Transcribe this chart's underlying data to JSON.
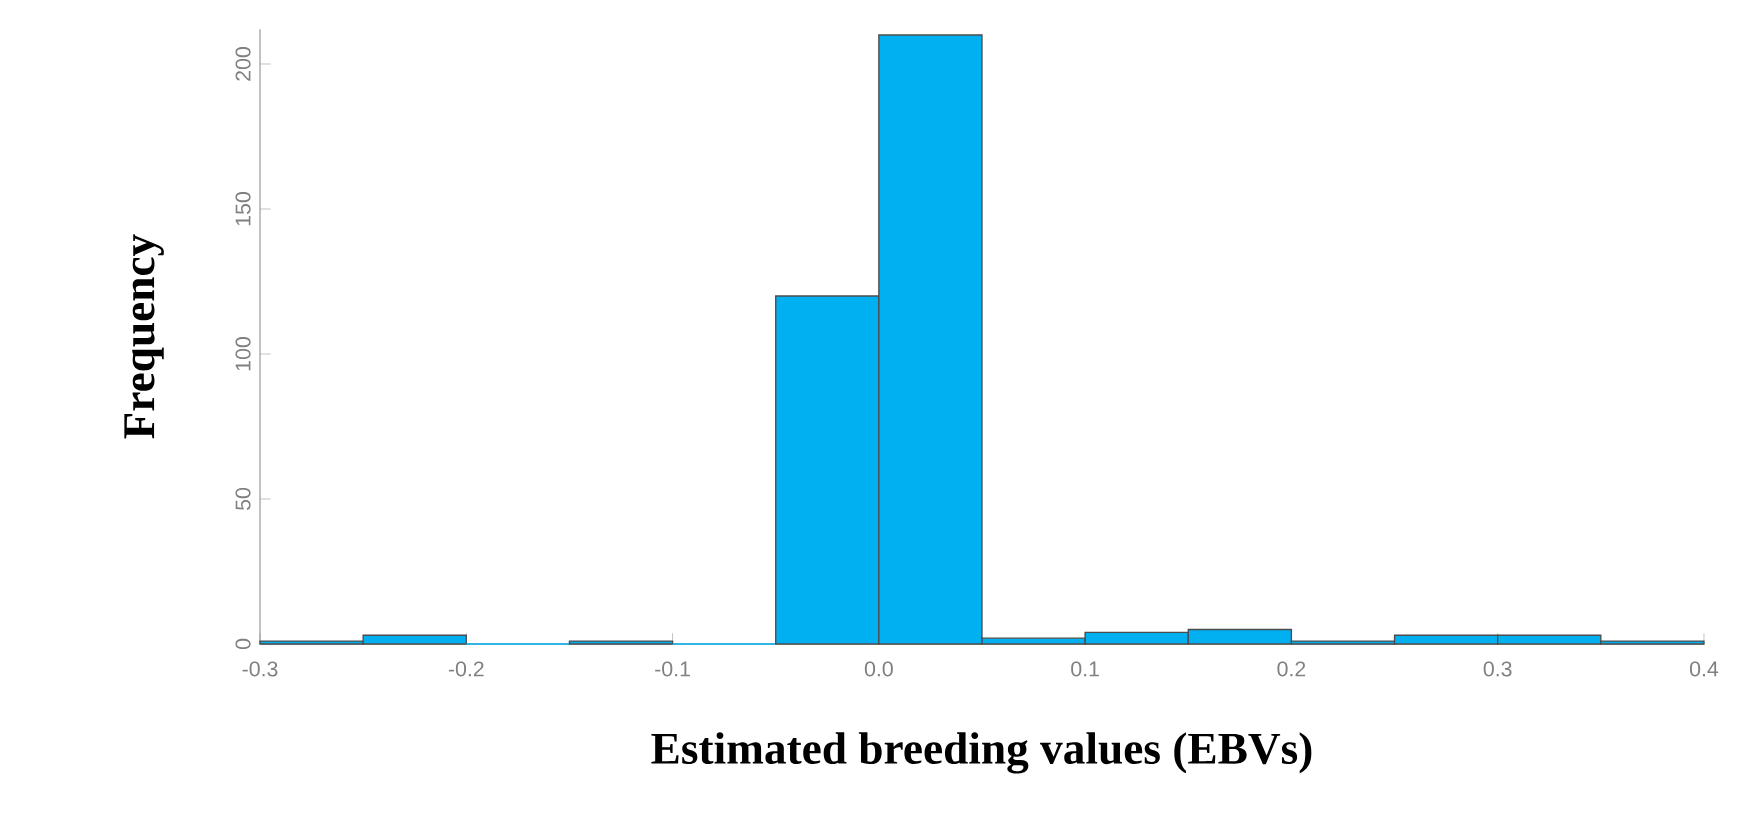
{
  "chart_data": {
    "type": "histogram",
    "xlabel": "Estimated breeding values (EBVs)",
    "ylabel": "Frequency",
    "bins": [
      -0.3,
      -0.25,
      -0.2,
      -0.15,
      -0.1,
      -0.05,
      0,
      0.05,
      0.1,
      0.15,
      0.2,
      0.25,
      0.3,
      0.35,
      0.4
    ],
    "values": [
      1,
      3,
      0,
      1,
      0,
      120,
      210,
      2,
      4,
      5,
      1,
      3,
      3,
      1
    ],
    "color": "#00b0f0",
    "xlim": [
      -0.3,
      0.4
    ],
    "xticks": [
      -0.3,
      -0.2,
      -0.1,
      {
        "value": 0,
        "label": "0.0"
      },
      0.1,
      0.2,
      0.3,
      0.4
    ],
    "ylim": [
      0,
      212
    ],
    "yticks": [
      0,
      50,
      100,
      150,
      200
    ],
    "grid": false
  }
}
